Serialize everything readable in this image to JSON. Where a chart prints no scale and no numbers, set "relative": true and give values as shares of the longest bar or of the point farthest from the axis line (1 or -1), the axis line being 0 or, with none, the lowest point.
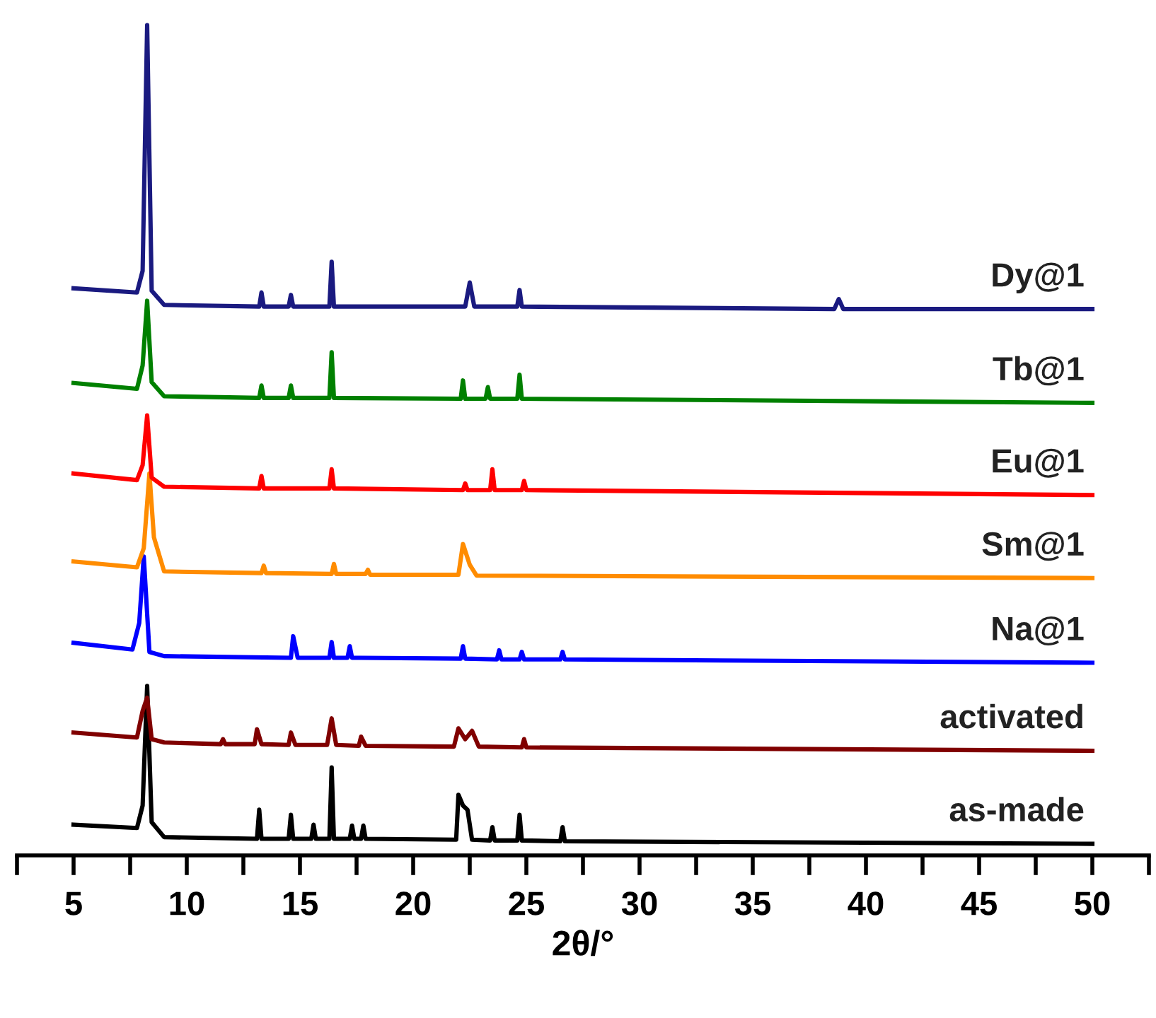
{
  "chart_data": {
    "type": "line",
    "relative": true,
    "xlabel": "2θ/°",
    "xlim": [
      2.5,
      52.5
    ],
    "xticks": [
      {
        "value": 2.5,
        "label": null
      },
      5,
      {
        "value": 7.5,
        "label": null
      },
      10,
      {
        "value": 12.5,
        "label": null
      },
      15,
      {
        "value": 17.5,
        "label": null
      },
      20,
      {
        "value": 22.5,
        "label": null
      },
      25,
      {
        "value": 27.5,
        "label": null
      },
      30,
      {
        "value": 32.5,
        "label": null
      },
      35,
      {
        "value": 37.5,
        "label": null
      },
      40,
      {
        "value": 42.5,
        "label": null
      },
      45,
      {
        "value": 47.5,
        "label": null
      },
      50,
      {
        "value": 52.5,
        "label": null
      }
    ],
    "grid": false,
    "line_style": "solid",
    "marker": "none",
    "tick_labels": "x",
    "series": [
      {
        "name": "as-made",
        "color": "#000000",
        "x": [
          5,
          7.8,
          8.05,
          8.25,
          8.45,
          9,
          13.1,
          13.2,
          13.3,
          14.5,
          14.6,
          14.7,
          15.5,
          15.6,
          15.7,
          16.3,
          16.4,
          16.5,
          17.2,
          17.3,
          17.4,
          17.7,
          17.8,
          17.9,
          21.9,
          22.0,
          22.2,
          22.4,
          22.6,
          23.4,
          23.5,
          23.6,
          24.6,
          24.7,
          24.8,
          26.5,
          26.6,
          26.7,
          50
        ],
        "values": [
          0.037,
          0.033,
          0.06,
          0.204,
          0.04,
          0.022,
          0.02,
          0.055,
          0.02,
          0.02,
          0.049,
          0.02,
          0.02,
          0.037,
          0.02,
          0.02,
          0.106,
          0.02,
          0.02,
          0.036,
          0.02,
          0.02,
          0.036,
          0.02,
          0.019,
          0.073,
          0.06,
          0.055,
          0.019,
          0.018,
          0.034,
          0.018,
          0.018,
          0.049,
          0.018,
          0.017,
          0.034,
          0.017,
          0.014
        ]
      },
      {
        "name": "activated",
        "color": "#800000",
        "x": [
          5,
          7.8,
          8.05,
          8.25,
          8.45,
          9,
          11.5,
          11.6,
          11.7,
          13.0,
          13.1,
          13.3,
          14.5,
          14.6,
          14.8,
          16.2,
          16.4,
          16.6,
          17.6,
          17.7,
          17.9,
          21.8,
          22.0,
          22.3,
          22.6,
          22.9,
          24.8,
          24.9,
          25.0,
          50
        ],
        "values": [
          0.148,
          0.142,
          0.174,
          0.19,
          0.14,
          0.136,
          0.134,
          0.14,
          0.134,
          0.134,
          0.152,
          0.134,
          0.133,
          0.148,
          0.133,
          0.133,
          0.165,
          0.133,
          0.132,
          0.143,
          0.132,
          0.131,
          0.153,
          0.14,
          0.15,
          0.131,
          0.13,
          0.14,
          0.13,
          0.126
        ]
      },
      {
        "name": "Na@1",
        "color": "#0000ff",
        "x": [
          5,
          7.6,
          7.9,
          8.1,
          8.35,
          9,
          14.6,
          14.7,
          14.9,
          16.3,
          16.4,
          16.5,
          17.1,
          17.2,
          17.3,
          22.1,
          22.2,
          22.3,
          23.7,
          23.8,
          23.9,
          24.7,
          24.8,
          24.9,
          26.5,
          26.6,
          26.7,
          50
        ],
        "values": [
          0.256,
          0.248,
          0.28,
          0.36,
          0.245,
          0.24,
          0.238,
          0.264,
          0.238,
          0.238,
          0.257,
          0.238,
          0.238,
          0.252,
          0.238,
          0.237,
          0.252,
          0.237,
          0.236,
          0.247,
          0.236,
          0.236,
          0.245,
          0.236,
          0.236,
          0.245,
          0.236,
          0.232
        ]
      },
      {
        "name": "Sm@1",
        "color": "#ff8c00",
        "x": [
          5,
          7.8,
          8.1,
          8.35,
          8.55,
          9,
          13.3,
          13.4,
          13.5,
          16.4,
          16.5,
          16.6,
          17.9,
          18.0,
          18.1,
          22.0,
          22.2,
          22.5,
          22.8,
          50
        ],
        "values": [
          0.354,
          0.347,
          0.37,
          0.46,
          0.383,
          0.342,
          0.34,
          0.349,
          0.34,
          0.339,
          0.351,
          0.339,
          0.339,
          0.344,
          0.338,
          0.338,
          0.375,
          0.35,
          0.337,
          0.334
        ]
      },
      {
        "name": "Eu@1",
        "color": "#ff0000",
        "x": [
          5,
          7.8,
          8.05,
          8.25,
          8.45,
          9,
          13.2,
          13.3,
          13.4,
          16.3,
          16.4,
          16.5,
          22.2,
          22.3,
          22.4,
          23.4,
          23.5,
          23.6,
          24.8,
          24.9,
          25.0,
          50
        ],
        "values": [
          0.46,
          0.452,
          0.47,
          0.53,
          0.455,
          0.444,
          0.442,
          0.457,
          0.442,
          0.442,
          0.465,
          0.442,
          0.44,
          0.448,
          0.44,
          0.44,
          0.465,
          0.44,
          0.44,
          0.451,
          0.44,
          0.434
        ]
      },
      {
        "name": "Tb@1",
        "color": "#008000",
        "x": [
          5,
          7.8,
          8.05,
          8.25,
          8.45,
          9,
          13.2,
          13.3,
          13.4,
          14.5,
          14.6,
          14.7,
          16.3,
          16.4,
          16.5,
          22.1,
          22.2,
          22.3,
          23.2,
          23.3,
          23.4,
          24.6,
          24.7,
          24.8,
          50
        ],
        "values": [
          0.569,
          0.562,
          0.59,
          0.668,
          0.57,
          0.553,
          0.551,
          0.566,
          0.551,
          0.551,
          0.566,
          0.551,
          0.551,
          0.606,
          0.551,
          0.55,
          0.572,
          0.55,
          0.55,
          0.564,
          0.55,
          0.55,
          0.579,
          0.55,
          0.545
        ]
      },
      {
        "name": "Dy@1",
        "color": "#1a1a80",
        "x": [
          5,
          7.8,
          8.05,
          8.25,
          8.45,
          9,
          13.2,
          13.3,
          13.4,
          14.5,
          14.6,
          14.7,
          16.3,
          16.4,
          16.5,
          22.3,
          22.5,
          22.7,
          24.6,
          24.7,
          24.8,
          38.6,
          38.8,
          39.0,
          50
        ],
        "values": [
          0.683,
          0.678,
          0.704,
          1.0,
          0.68,
          0.663,
          0.661,
          0.678,
          0.661,
          0.661,
          0.675,
          0.661,
          0.661,
          0.715,
          0.661,
          0.661,
          0.69,
          0.661,
          0.661,
          0.681,
          0.661,
          0.658,
          0.67,
          0.658,
          0.658
        ]
      }
    ]
  }
}
